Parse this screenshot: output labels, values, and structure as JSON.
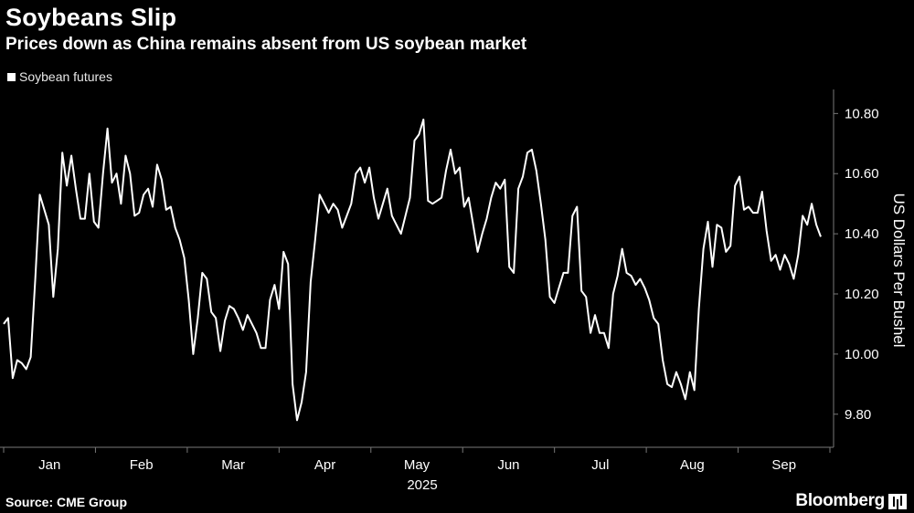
{
  "header": {
    "title": "Soybeans Slip",
    "subtitle": "Prices down as China remains absent from US soybean market"
  },
  "footer": {
    "source": "Source: CME Group",
    "brand": "Bloomberg",
    "brand_icon": "bloomberg-bars-icon"
  },
  "colors": {
    "background": "#000000",
    "line": "#ffffff",
    "text": "#ffffff",
    "grid": "#777777"
  },
  "chart_data": {
    "type": "line",
    "title": "Soybeans Slip",
    "subtitle": "Prices down as China remains absent from US soybean market",
    "ylabel": "US Dollars Per Bushel",
    "xlabel": "",
    "year_label": "2025",
    "x_ticks": [
      "Jan",
      "Feb",
      "Mar",
      "Apr",
      "May",
      "Jun",
      "Jul",
      "Aug",
      "Sep"
    ],
    "y_ticks": [
      "9.80",
      "10.00",
      "10.20",
      "10.40",
      "10.60",
      "10.80"
    ],
    "ylim": [
      9.69,
      10.88
    ],
    "grid": false,
    "legend_position": "top-left",
    "series": [
      {
        "name": "Soybean futures",
        "values": [
          10.1,
          10.12,
          9.92,
          9.98,
          9.97,
          9.95,
          9.99,
          10.25,
          10.53,
          10.48,
          10.43,
          10.19,
          10.35,
          10.67,
          10.56,
          10.66,
          10.55,
          10.45,
          10.45,
          10.6,
          10.44,
          10.42,
          10.6,
          10.75,
          10.57,
          10.6,
          10.5,
          10.66,
          10.6,
          10.46,
          10.47,
          10.53,
          10.55,
          10.49,
          10.63,
          10.58,
          10.48,
          10.49,
          10.42,
          10.38,
          10.32,
          10.18,
          10.0,
          10.12,
          10.27,
          10.25,
          10.14,
          10.12,
          10.01,
          10.11,
          10.16,
          10.15,
          10.12,
          10.08,
          10.13,
          10.1,
          10.07,
          10.02,
          10.02,
          10.18,
          10.23,
          10.15,
          10.34,
          10.3,
          9.9,
          9.78,
          9.84,
          9.94,
          10.24,
          10.38,
          10.53,
          10.5,
          10.47,
          10.5,
          10.48,
          10.42,
          10.46,
          10.5,
          10.6,
          10.62,
          10.57,
          10.62,
          10.52,
          10.45,
          10.5,
          10.55,
          10.46,
          10.43,
          10.4,
          10.46,
          10.52,
          10.71,
          10.73,
          10.78,
          10.51,
          10.5,
          10.51,
          10.52,
          10.61,
          10.68,
          10.6,
          10.62,
          10.49,
          10.52,
          10.43,
          10.34,
          10.4,
          10.45,
          10.52,
          10.57,
          10.55,
          10.58,
          10.29,
          10.27,
          10.55,
          10.59,
          10.67,
          10.68,
          10.61,
          10.5,
          10.38,
          10.19,
          10.17,
          10.22,
          10.27,
          10.27,
          10.46,
          10.49,
          10.21,
          10.19,
          10.07,
          10.13,
          10.07,
          10.07,
          10.02,
          10.2,
          10.26,
          10.35,
          10.27,
          10.26,
          10.23,
          10.25,
          10.22,
          10.18,
          10.12,
          10.1,
          9.98,
          9.9,
          9.89,
          9.94,
          9.9,
          9.85,
          9.94,
          9.88,
          10.15,
          10.35,
          10.44,
          10.29,
          10.43,
          10.42,
          10.34,
          10.36,
          10.56,
          10.59,
          10.48,
          10.49,
          10.47,
          10.47,
          10.54,
          10.41,
          10.31,
          10.33,
          10.28,
          10.33,
          10.3,
          10.25,
          10.33,
          10.46,
          10.43,
          10.5,
          10.43,
          10.39
        ]
      }
    ]
  }
}
